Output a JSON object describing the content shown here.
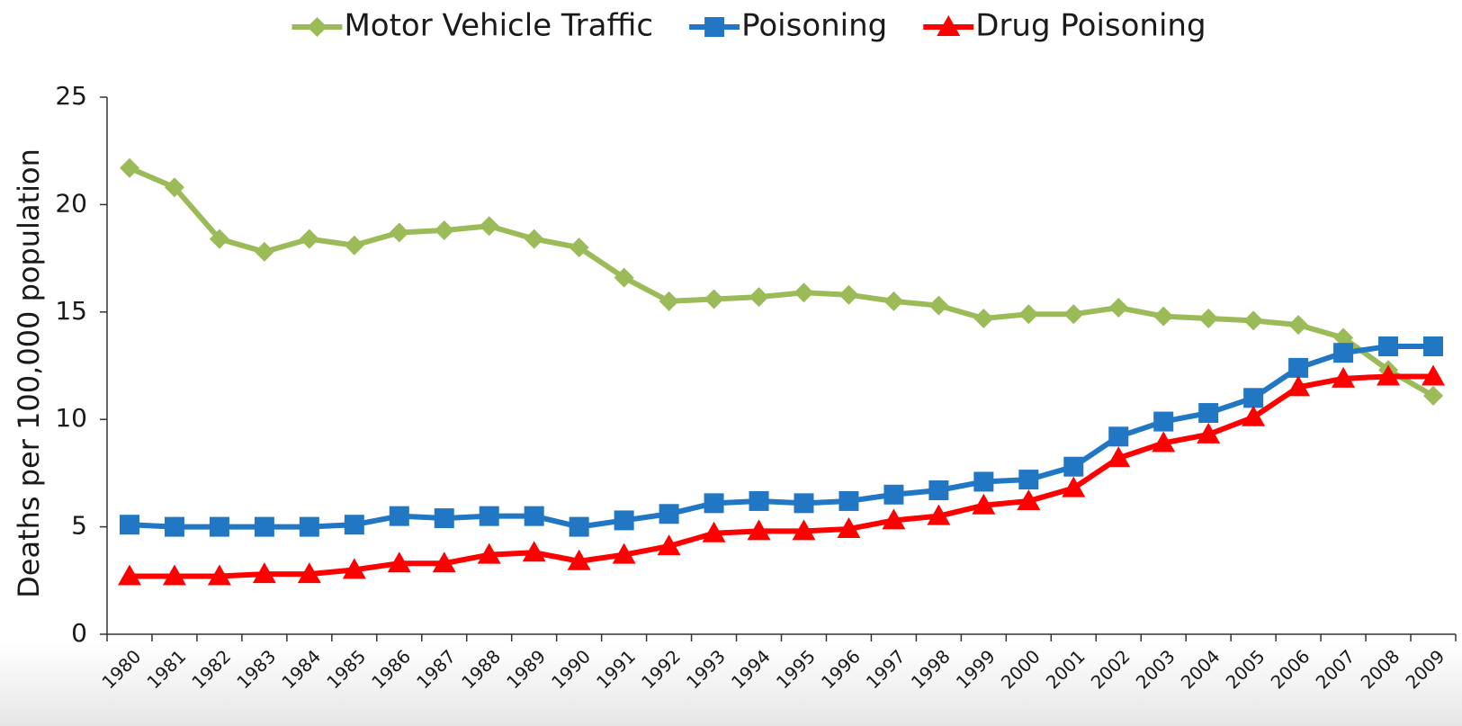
{
  "chart_data": {
    "type": "line",
    "y_label": "Deaths per 100,000 population",
    "categories": [
      "1980",
      "1981",
      "1982",
      "1983",
      "1984",
      "1985",
      "1986",
      "1987",
      "1988",
      "1989",
      "1990",
      "1991",
      "1992",
      "1993",
      "1994",
      "1995",
      "1996",
      "1997",
      "1998",
      "1999",
      "2000",
      "2001",
      "2002",
      "2003",
      "2004",
      "2005",
      "2006",
      "2007",
      "2008",
      "2009"
    ],
    "series": [
      {
        "name": "Motor Vehicle Traffic",
        "color": "#9bbb59",
        "marker": "diamond",
        "values": [
          21.7,
          20.8,
          18.4,
          17.8,
          18.4,
          18.1,
          18.7,
          18.8,
          19.0,
          18.4,
          18.0,
          16.6,
          15.5,
          15.6,
          15.7,
          15.9,
          15.8,
          15.5,
          15.3,
          14.7,
          14.9,
          14.9,
          15.2,
          14.8,
          14.7,
          14.6,
          14.4,
          13.8,
          12.3,
          11.1
        ]
      },
      {
        "name": "Poisoning",
        "color": "#2277c4",
        "marker": "square",
        "values": [
          5.1,
          5.0,
          5.0,
          5.0,
          5.0,
          5.1,
          5.5,
          5.4,
          5.5,
          5.5,
          5.0,
          5.3,
          5.6,
          6.1,
          6.2,
          6.1,
          6.2,
          6.5,
          6.7,
          7.1,
          7.2,
          7.8,
          9.2,
          9.9,
          10.3,
          11.0,
          12.4,
          13.1,
          13.4,
          13.4
        ]
      },
      {
        "name": "Drug Poisoning",
        "color": "#ff0000",
        "marker": "triangle",
        "values": [
          2.7,
          2.7,
          2.7,
          2.8,
          2.8,
          3.0,
          3.3,
          3.3,
          3.7,
          3.8,
          3.4,
          3.7,
          4.1,
          4.7,
          4.8,
          4.8,
          4.9,
          5.3,
          5.5,
          6.0,
          6.2,
          6.8,
          8.2,
          8.9,
          9.3,
          10.1,
          11.5,
          11.9,
          12.0,
          12.0
        ]
      }
    ],
    "ylim": [
      0,
      25
    ],
    "yticks": [
      0,
      5,
      10,
      15,
      20,
      25
    ],
    "grid": false
  }
}
